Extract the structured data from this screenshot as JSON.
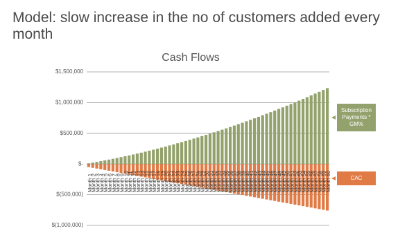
{
  "title": "Model: slow increase in the no of customers added every month",
  "chart_data": {
    "type": "bar",
    "title": "Cash Flows",
    "categories": [
      "Month 1",
      "Month 2",
      "Month 3",
      "Month 4",
      "Month 5",
      "Month 6",
      "Month 7",
      "Month 8",
      "Month 9",
      "Month 10",
      "Month 11",
      "Month 12",
      "Month 13",
      "Month 14",
      "Month 15",
      "Month 16",
      "Month 17",
      "Month 18",
      "Month 19",
      "Month 20",
      "Month 21",
      "Month 22",
      "Month 23",
      "Month 24",
      "Month 25",
      "Month 26",
      "Month 27",
      "Month 28",
      "Month 29",
      "Month 30",
      "Month 31",
      "Month 32",
      "Month 33",
      "Month 34",
      "Month 35",
      "Month 36",
      "Month 37",
      "Month 38",
      "Month 39",
      "Month 40",
      "Month 41",
      "Month 42",
      "Month 43",
      "Month 44",
      "Month 45",
      "Month 46",
      "Month 47",
      "Month 48",
      "Month 49",
      "Month 50",
      "Month 51",
      "Month 52",
      "Month 53",
      "Month 54",
      "Month 55",
      "Month 56",
      "Month 57",
      "Month 58",
      "Month 59",
      "Month 60"
    ],
    "series": [
      {
        "name": "Subscription Payments * GM%",
        "color": "#93a26c",
        "values": [
          11000,
          23000,
          34000,
          47000,
          59000,
          72000,
          85000,
          98000,
          112000,
          126000,
          140000,
          155000,
          170000,
          185000,
          201000,
          217000,
          233000,
          250000,
          267000,
          284000,
          302000,
          319000,
          338000,
          356000,
          375000,
          394000,
          414000,
          433000,
          454000,
          474000,
          495000,
          516000,
          537000,
          559000,
          581000,
          603000,
          626000,
          649000,
          672000,
          696000,
          720000,
          744000,
          769000,
          794000,
          819000,
          845000,
          870000,
          897000,
          923000,
          950000,
          977000,
          1005000,
          1032000,
          1061000,
          1089000,
          1118000,
          1147000,
          1176000,
          1206000,
          1236000
        ]
      },
      {
        "name": "CAC",
        "color": "#e07b45",
        "values": [
          -50000,
          -62000,
          -74000,
          -86000,
          -98000,
          -110000,
          -122000,
          -134000,
          -146000,
          -158000,
          -170000,
          -182000,
          -194000,
          -206000,
          -218000,
          -230000,
          -242000,
          -254000,
          -266000,
          -278000,
          -290000,
          -302000,
          -314000,
          -326000,
          -338000,
          -350000,
          -362000,
          -374000,
          -386000,
          -398000,
          -410000,
          -422000,
          -434000,
          -446000,
          -458000,
          -470000,
          -482000,
          -494000,
          -506000,
          -518000,
          -530000,
          -542000,
          -554000,
          -566000,
          -578000,
          -590000,
          -602000,
          -614000,
          -626000,
          -638000,
          -650000,
          -662000,
          -674000,
          -686000,
          -698000,
          -710000,
          -722000,
          -734000,
          -746000,
          -758000
        ]
      }
    ],
    "ylim": [
      -1000000,
      1500000
    ],
    "yticks": [
      {
        "value": -1000000,
        "label": "$(1,000,000)"
      },
      {
        "value": -500000,
        "label": "$(500,000)"
      },
      {
        "value": 0,
        "label": "$-"
      },
      {
        "value": 500000,
        "label": "$500,000"
      },
      {
        "value": 1000000,
        "label": "$1,000,000"
      },
      {
        "value": 1500000,
        "label": "$1,500,000"
      }
    ],
    "grid": true,
    "legend": "right"
  }
}
